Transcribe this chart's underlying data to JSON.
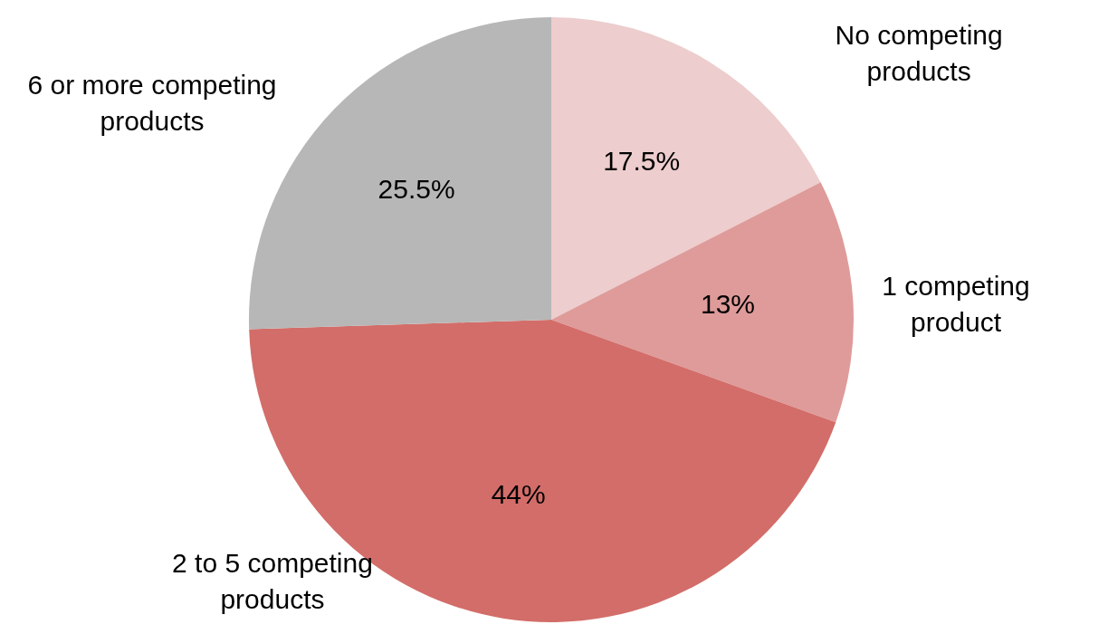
{
  "chart_data": {
    "type": "pie",
    "categories": [
      "No competing products",
      "1 competing product",
      "2 to 5 competing products",
      "6 or more competing products"
    ],
    "values": [
      17.5,
      13,
      44,
      25.5
    ],
    "value_labels": [
      "17.5%",
      "13%",
      "44%",
      "25.5%"
    ],
    "colors": [
      "#edcdcd",
      "#de9b9a",
      "#d36d69",
      "#b7b7b7"
    ],
    "legend": false
  }
}
